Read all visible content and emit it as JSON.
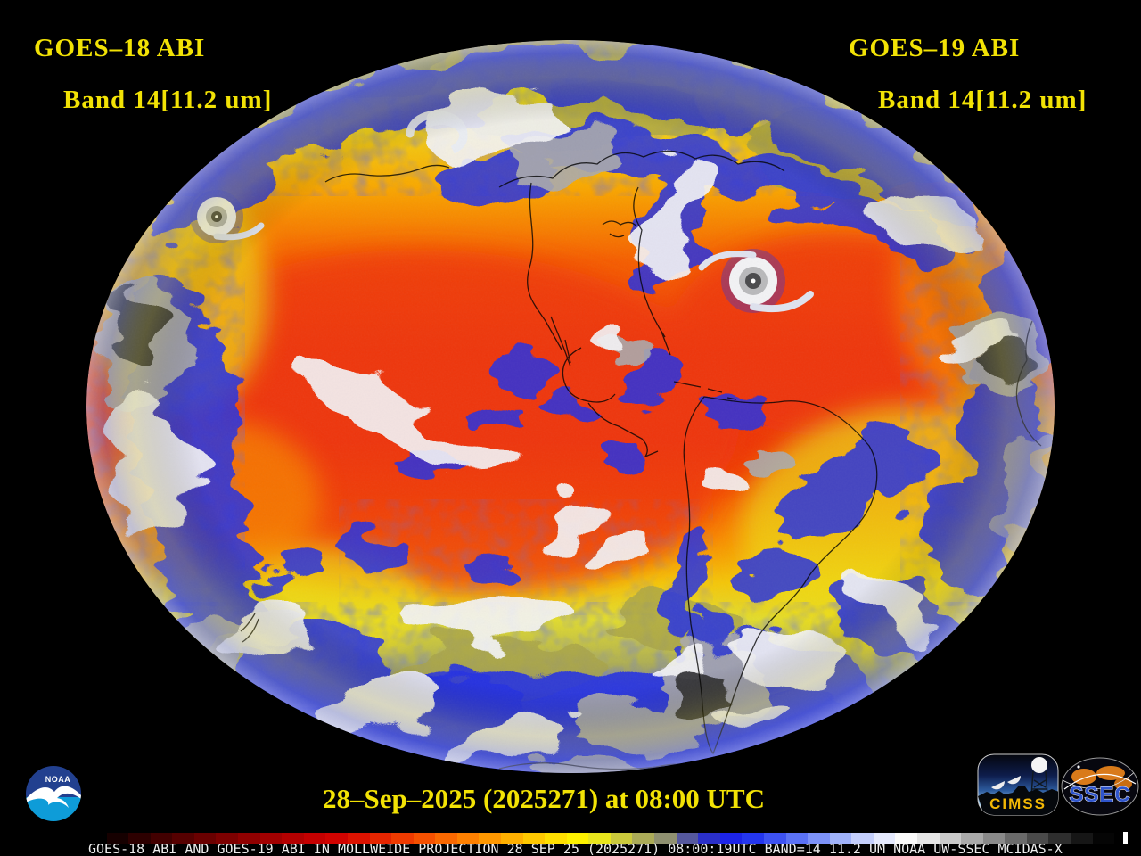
{
  "header": {
    "label_color": "#f2e205",
    "goes18": {
      "line1": "GOES–18 ABI",
      "line2": "Band 14[11.2 um]"
    },
    "goes19": {
      "line1": "GOES–19 ABI",
      "line2": "Band 14[11.2 um]"
    }
  },
  "timestamp": {
    "text": "28–Sep–2025 (2025271) at 08:00 UTC"
  },
  "logos": {
    "noaa": {
      "label": "NOAA"
    },
    "cimss": {
      "label": "CIMSS"
    },
    "ssec": {
      "label": "SSEC"
    }
  },
  "footer": {
    "caption": "GOES-18 ABI AND GOES-19 ABI IN MOLLWEIDE PROJECTION 28 SEP 25 (2025271) 08:00:19UTC BAND=14 11.2 UM NOAA UW-SSEC MCIDAS-X",
    "colorbar": {
      "segments": [
        "#000000",
        "#160000",
        "#2d0000",
        "#420000",
        "#560000",
        "#6a0000",
        "#7d0000",
        "#900000",
        "#a20000",
        "#b30000",
        "#c40000",
        "#d00300",
        "#db1200",
        "#e52500",
        "#ee3a00",
        "#f55000",
        "#fa6800",
        "#fe8000",
        "#ff9800",
        "#ffb000",
        "#ffc800",
        "#ffdf00",
        "#fdf100",
        "#e9e51d",
        "#cbca3c",
        "#abab58",
        "#8f9070",
        "#55589e",
        "#2a2fc9",
        "#1c24e8",
        "#2436ee",
        "#3d52f2",
        "#5b72f5",
        "#7d92f8",
        "#a0b2fa",
        "#c4cffc",
        "#e5eafe",
        "#fbfbfb",
        "#e6e6e6",
        "#cacaca",
        "#aaaaaa",
        "#8a8a8a",
        "#6a6a6a",
        "#4a4a4a",
        "#2e2e2e",
        "#161616",
        "#050505",
        "#000000"
      ],
      "marker_color": "#ffffff",
      "marker_position": 0.989
    }
  },
  "earth_palette": {
    "warm_red": "#ee3408",
    "orange": "#f88a00",
    "yellow": "#eedc12",
    "olive": "#a9a449",
    "cloud_blue": "#2731e2",
    "cloud_white": "#f4f4f6",
    "cloud_gray": "#ababad",
    "storm_dark": "#353537"
  }
}
